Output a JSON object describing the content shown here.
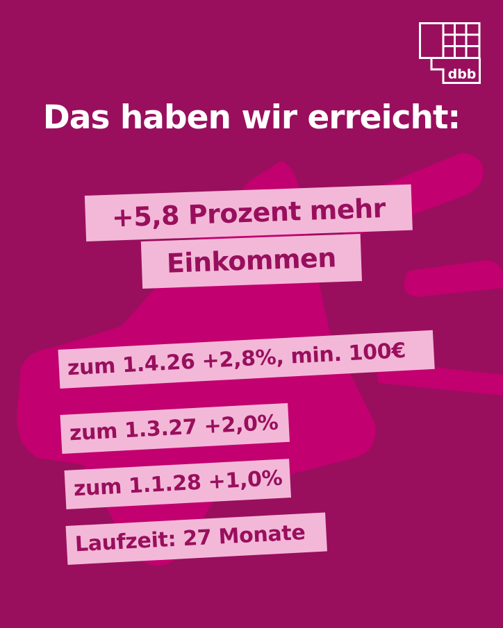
{
  "logo": {
    "text": "dbb",
    "icon": "dbb-logo-grid"
  },
  "headline": "Das haben wir erreicht:",
  "main": {
    "line1": "+5,8 Prozent mehr",
    "line2": "Einkommen"
  },
  "items": [
    "zum 1.4.26 +2,8%, min. 100€",
    "zum 1.3.27 +2,0%",
    "zum 1.1.28 +1,0%",
    "Laufzeit: 27 Monate"
  ],
  "colors": {
    "background": "#990f5d",
    "shape": "#c2006f",
    "label_background": "#f3b8d8",
    "label_text": "#990f5d",
    "headline": "#ffffff"
  },
  "background_icon": "megaphone-icon"
}
